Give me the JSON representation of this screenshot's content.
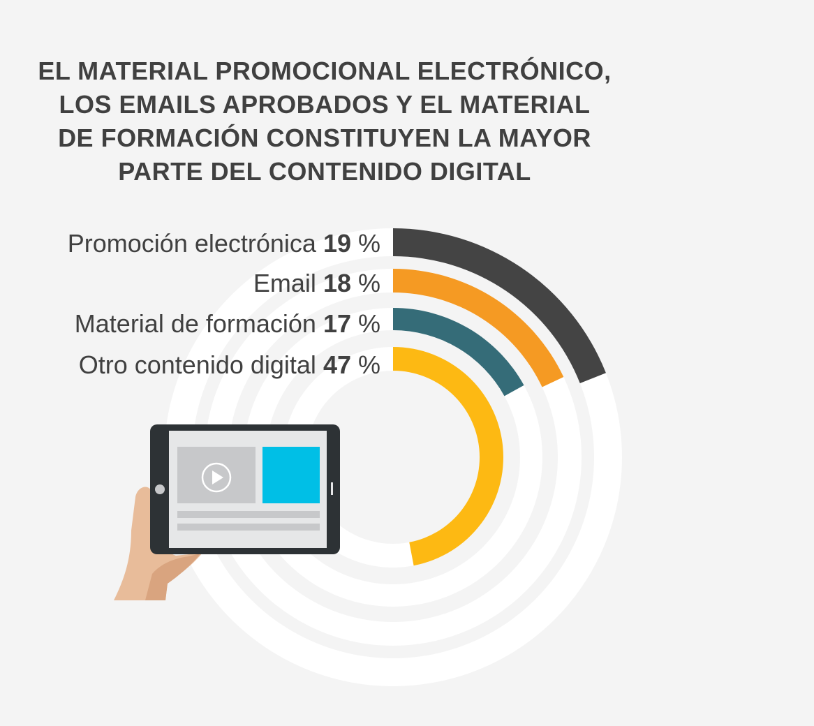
{
  "title_lines": [
    "EL MATERIAL PROMOCIONAL ELECTRÓNICO,",
    "LOS EMAILS APROBADOS Y EL MATERIAL",
    "DE FORMACIÓN CONSTITUYEN LA MAYOR",
    "PARTE DEL CONTENIDO DIGITAL"
  ],
  "chart_data": {
    "type": "radial-bar",
    "unit": "%",
    "series": [
      {
        "name": "Promoción electrónica",
        "value": 19,
        "color": "#444444"
      },
      {
        "name": "Email",
        "value": 18,
        "color": "#f59a23"
      },
      {
        "name": "Material de formación",
        "value": 17,
        "color": "#356c78"
      },
      {
        "name": "Otro contenido digital",
        "value": 47,
        "color": "#fdb913"
      }
    ],
    "value_range": [
      0,
      100
    ],
    "legend_placement": "left",
    "track_color": "#ffffff"
  },
  "illustration": {
    "tablet_icon": "tablet-icon",
    "play_icon": "play-icon",
    "hand": "hand-illustration",
    "accent_color": "#00bfe6"
  }
}
